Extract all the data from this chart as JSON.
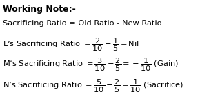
{
  "background_color": "#ffffff",
  "title_text": "Working Note:-",
  "line0": "Sacrificing Ratio = Old Ratio - New Ratio",
  "line1": "L’s Sacrificing Ratio $= \\dfrac{2}{10} - \\dfrac{1}{5} = \\mathrm{Nil}$",
  "line2": "M’s Sacrificing Ratio $= \\dfrac{3}{10} - \\dfrac{2}{5} = -\\dfrac{1}{10}$ (Gain)",
  "line3": "N’s Sacrificing Ratio $= \\dfrac{5}{10} - \\dfrac{2}{5} = \\dfrac{1}{10}$ (Sacrifice)",
  "font_size_title": 9,
  "font_size_body": 8.2,
  "text_color": "#000000",
  "figwidth": 3.19,
  "figheight": 1.34,
  "dpi": 100
}
